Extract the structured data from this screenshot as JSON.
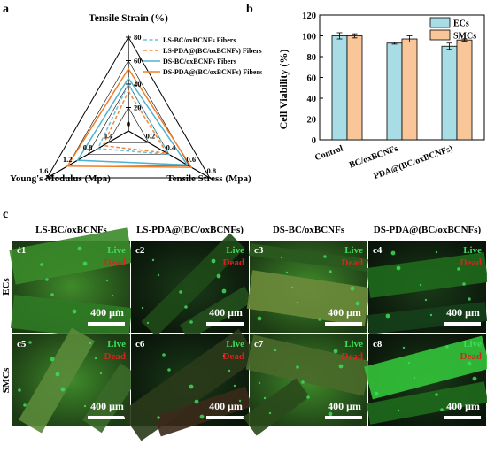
{
  "panel_letters": {
    "a": "a",
    "b": "b",
    "c": "c"
  },
  "chart_data": [
    {
      "type": "radar",
      "axes": [
        {
          "label": "Tensile Strain (%)",
          "max": 80,
          "ticks": [
            "0",
            "20",
            "40",
            "60",
            "80"
          ]
        },
        {
          "label": "Tensile Stress (Mpa)",
          "max": 0.8,
          "ticks": [
            "0",
            "0.2",
            "0.4",
            "0.6",
            "0.8"
          ]
        },
        {
          "label": "Young's Modulus (Mpa)",
          "max": 1.6,
          "ticks": [
            "0",
            "0.4",
            "0.8",
            "1.2",
            "1.6"
          ]
        }
      ],
      "series": [
        {
          "name": "LS-BC/oxBCNFs Fibers",
          "values": [
            40,
            0.4,
            0.6
          ],
          "color": "#6cbfd6",
          "dashed": true
        },
        {
          "name": "LS-PDA@(BC/oxBCNFs) Fibers",
          "values": [
            34,
            0.38,
            0.5
          ],
          "color": "#f08a3c",
          "dashed": true
        },
        {
          "name": "DS-BC/oxBCNFs Fibers",
          "values": [
            45,
            0.58,
            1.0
          ],
          "color": "#4fb3d0",
          "dashed": false
        },
        {
          "name": "DS-PDA@(BC/oxBCNFs) Fibers",
          "values": [
            53,
            0.62,
            1.2
          ],
          "color": "#f07f28",
          "dashed": false
        }
      ]
    },
    {
      "type": "bar",
      "ylabel": "Cell Viability (%)",
      "ylim": [
        0,
        120
      ],
      "yticks": [
        "0",
        "20",
        "40",
        "60",
        "80",
        "100",
        "120"
      ],
      "categories": [
        "Control",
        "BC/oxBCNFs",
        "PDA@(BC/oxBCNFs)"
      ],
      "series": [
        {
          "name": "ECs",
          "values": [
            100,
            93,
            90
          ],
          "errors": [
            3,
            1,
            3
          ],
          "color": "#a9dde6"
        },
        {
          "name": "SMCs",
          "values": [
            100,
            97,
            96
          ],
          "errors": [
            2,
            3,
            1
          ],
          "color": "#f9c69a"
        }
      ],
      "legend": "top-right"
    }
  ],
  "micrographs": {
    "columns": [
      "LS-BC/oxBCNFs",
      "LS-PDA@(BC/oxBCNFs)",
      "DS-BC/oxBCNFs",
      "DS-PDA@(BC/oxBCNFs)"
    ],
    "rows": [
      "ECs",
      "SMCs"
    ],
    "panel_ids": [
      "c1",
      "c2",
      "c3",
      "c4",
      "c5",
      "c6",
      "c7",
      "c8"
    ],
    "live_label": "Live",
    "dead_label": "Dead",
    "scale_bar": "400 μm",
    "live_color": "#3ddc5a",
    "dead_color": "#e02020"
  }
}
